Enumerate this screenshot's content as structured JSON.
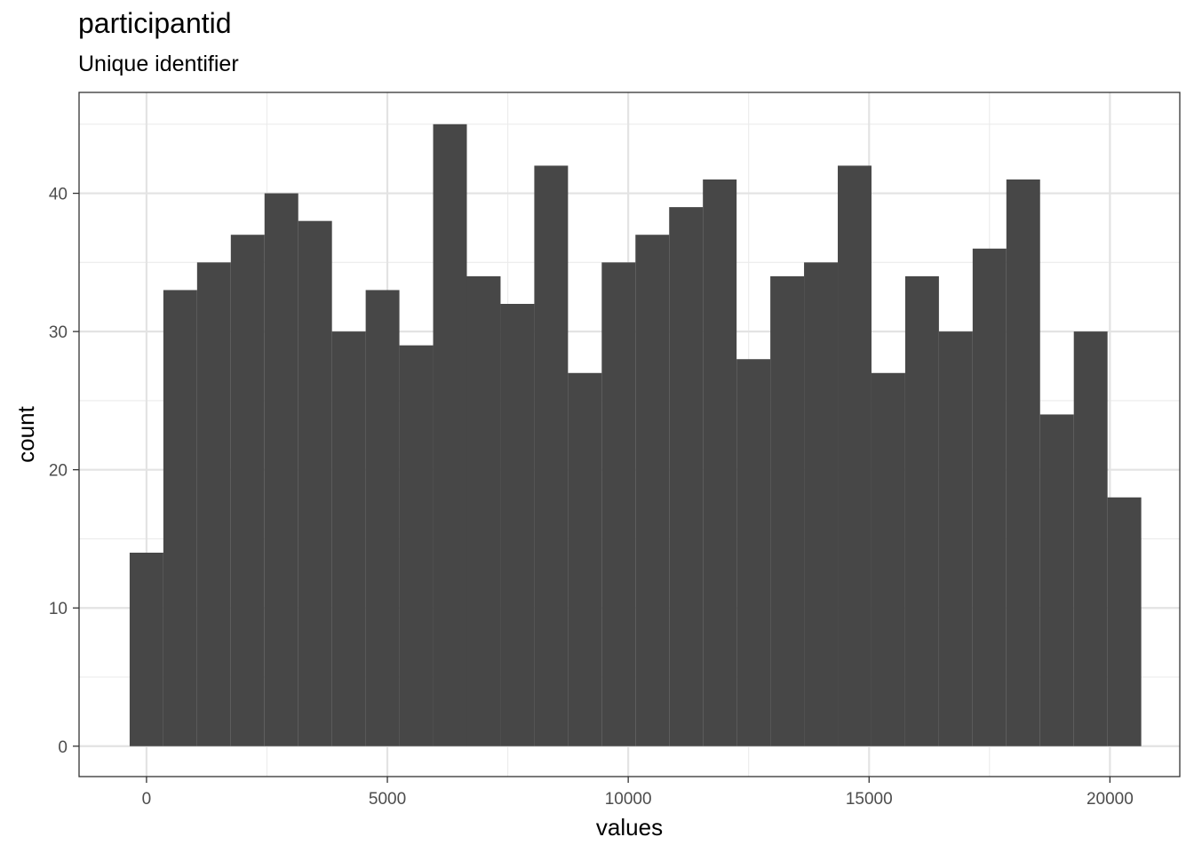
{
  "chart_data": {
    "type": "bar",
    "title": "participantid",
    "subtitle": "Unique identifier",
    "xlabel": "values",
    "ylabel": "count",
    "xlim": [
      -1400,
      21450
    ],
    "ylim": [
      -2.2,
      47.3
    ],
    "x_ticks": [
      0,
      5000,
      10000,
      15000,
      20000
    ],
    "y_ticks": [
      0,
      10,
      20,
      30,
      40
    ],
    "bin_width": 700,
    "bin_start": -350,
    "counts": [
      14,
      33,
      35,
      37,
      40,
      38,
      30,
      33,
      29,
      45,
      34,
      32,
      42,
      27,
      35,
      37,
      39,
      41,
      28,
      34,
      35,
      42,
      27,
      34,
      30,
      36,
      41,
      24,
      30,
      18
    ],
    "bar_color": "#474747",
    "grid": true
  }
}
